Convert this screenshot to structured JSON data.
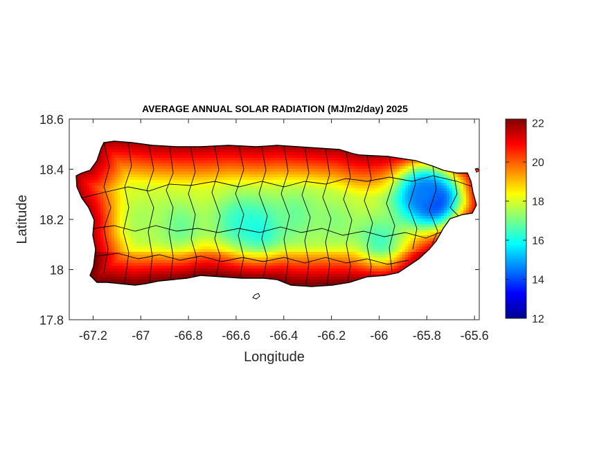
{
  "chart_data": {
    "type": "heatmap",
    "title": "AVERAGE ANNUAL SOLAR RADIATION (MJ/m2/day) 2025",
    "xlabel": "Longitude",
    "ylabel": "Latitude",
    "xlim": [
      -67.3,
      -65.58
    ],
    "ylim": [
      17.8,
      18.6
    ],
    "xticks": [
      -67.2,
      -67,
      -66.8,
      -66.6,
      -66.4,
      -66.2,
      -66,
      -65.8,
      -65.6
    ],
    "xtick_labels": [
      "-67.2",
      "-67",
      "-66.8",
      "-66.6",
      "-66.4",
      "-66.2",
      "-66",
      "-65.8",
      "-65.6"
    ],
    "yticks": [
      17.8,
      18,
      18.2,
      18.4,
      18.6
    ],
    "ytick_labels": [
      "17.8",
      "18",
      "18.2",
      "18.4",
      "18.6"
    ],
    "colorbar": {
      "min": 12,
      "max": 22.2,
      "colormap": "jet",
      "ticks": [
        12,
        14,
        16,
        18,
        20,
        22
      ],
      "tick_labels": [
        "12",
        "14",
        "16",
        "18",
        "20",
        "22"
      ]
    },
    "grid": false,
    "hotspots": [
      {
        "lon": -65.78,
        "lat": 18.28,
        "value": 13.0
      },
      {
        "lon": -65.82,
        "lat": 18.31,
        "value": 14.5
      },
      {
        "lon": -66.6,
        "lat": 18.2,
        "value": 16.5
      },
      {
        "lon": -66.5,
        "lat": 18.17,
        "value": 16.0
      },
      {
        "lon": -66.85,
        "lat": 18.18,
        "value": 16.8
      },
      {
        "lon": -66.35,
        "lat": 18.22,
        "value": 16.8
      },
      {
        "lon": -66.2,
        "lat": 18.2,
        "value": 17.2
      },
      {
        "lon": -66.0,
        "lat": 18.12,
        "value": 16.5
      },
      {
        "lon": -67.0,
        "lat": 18.2,
        "value": 17.5
      }
    ]
  }
}
